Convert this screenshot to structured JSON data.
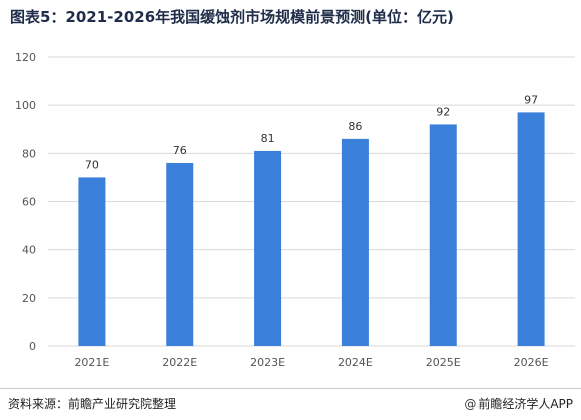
{
  "title": "图表5：2021-2026年我国缓蚀剂市场规模前景预测(单位：亿元)",
  "footer": {
    "source": "资料来源：前瞻产业研究院整理",
    "brand": "前瞻经济学人APP",
    "brand_icon": "at-sign-icon"
  },
  "colors": {
    "bar": "#3a7fd9",
    "grid": "#d9d9d9",
    "axis_text": "#555555"
  },
  "chart_data": {
    "type": "bar",
    "categories": [
      "2021E",
      "2022E",
      "2023E",
      "2024E",
      "2025E",
      "2026E"
    ],
    "values": [
      70,
      76,
      81,
      86,
      92,
      97
    ],
    "ylim": [
      0,
      120
    ],
    "yticks": [
      0,
      20,
      40,
      60,
      80,
      100,
      120
    ],
    "grid": true,
    "data_labels": true
  }
}
